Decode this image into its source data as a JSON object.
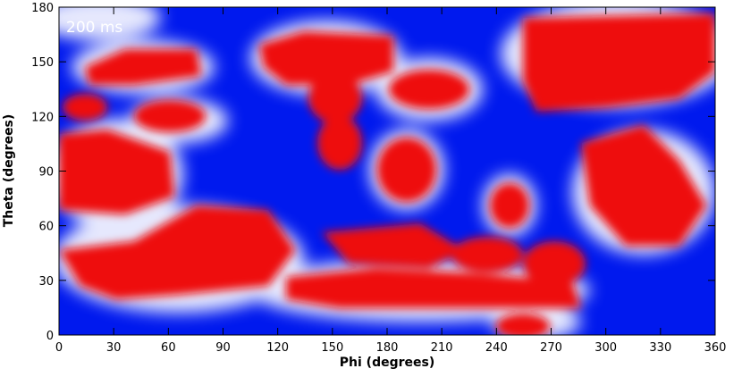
{
  "chart_data": {
    "type": "image",
    "annotation": "200 ms",
    "x_label": "Phi (degrees)",
    "y_label": "Theta (degrees)",
    "xlim": [
      0,
      360
    ],
    "ylim": [
      0,
      180
    ],
    "xticks": [
      0,
      30,
      60,
      90,
      120,
      150,
      180,
      210,
      240,
      270,
      300,
      330,
      360
    ],
    "yticks": [
      0,
      30,
      60,
      90,
      120,
      150,
      180
    ]
  }
}
